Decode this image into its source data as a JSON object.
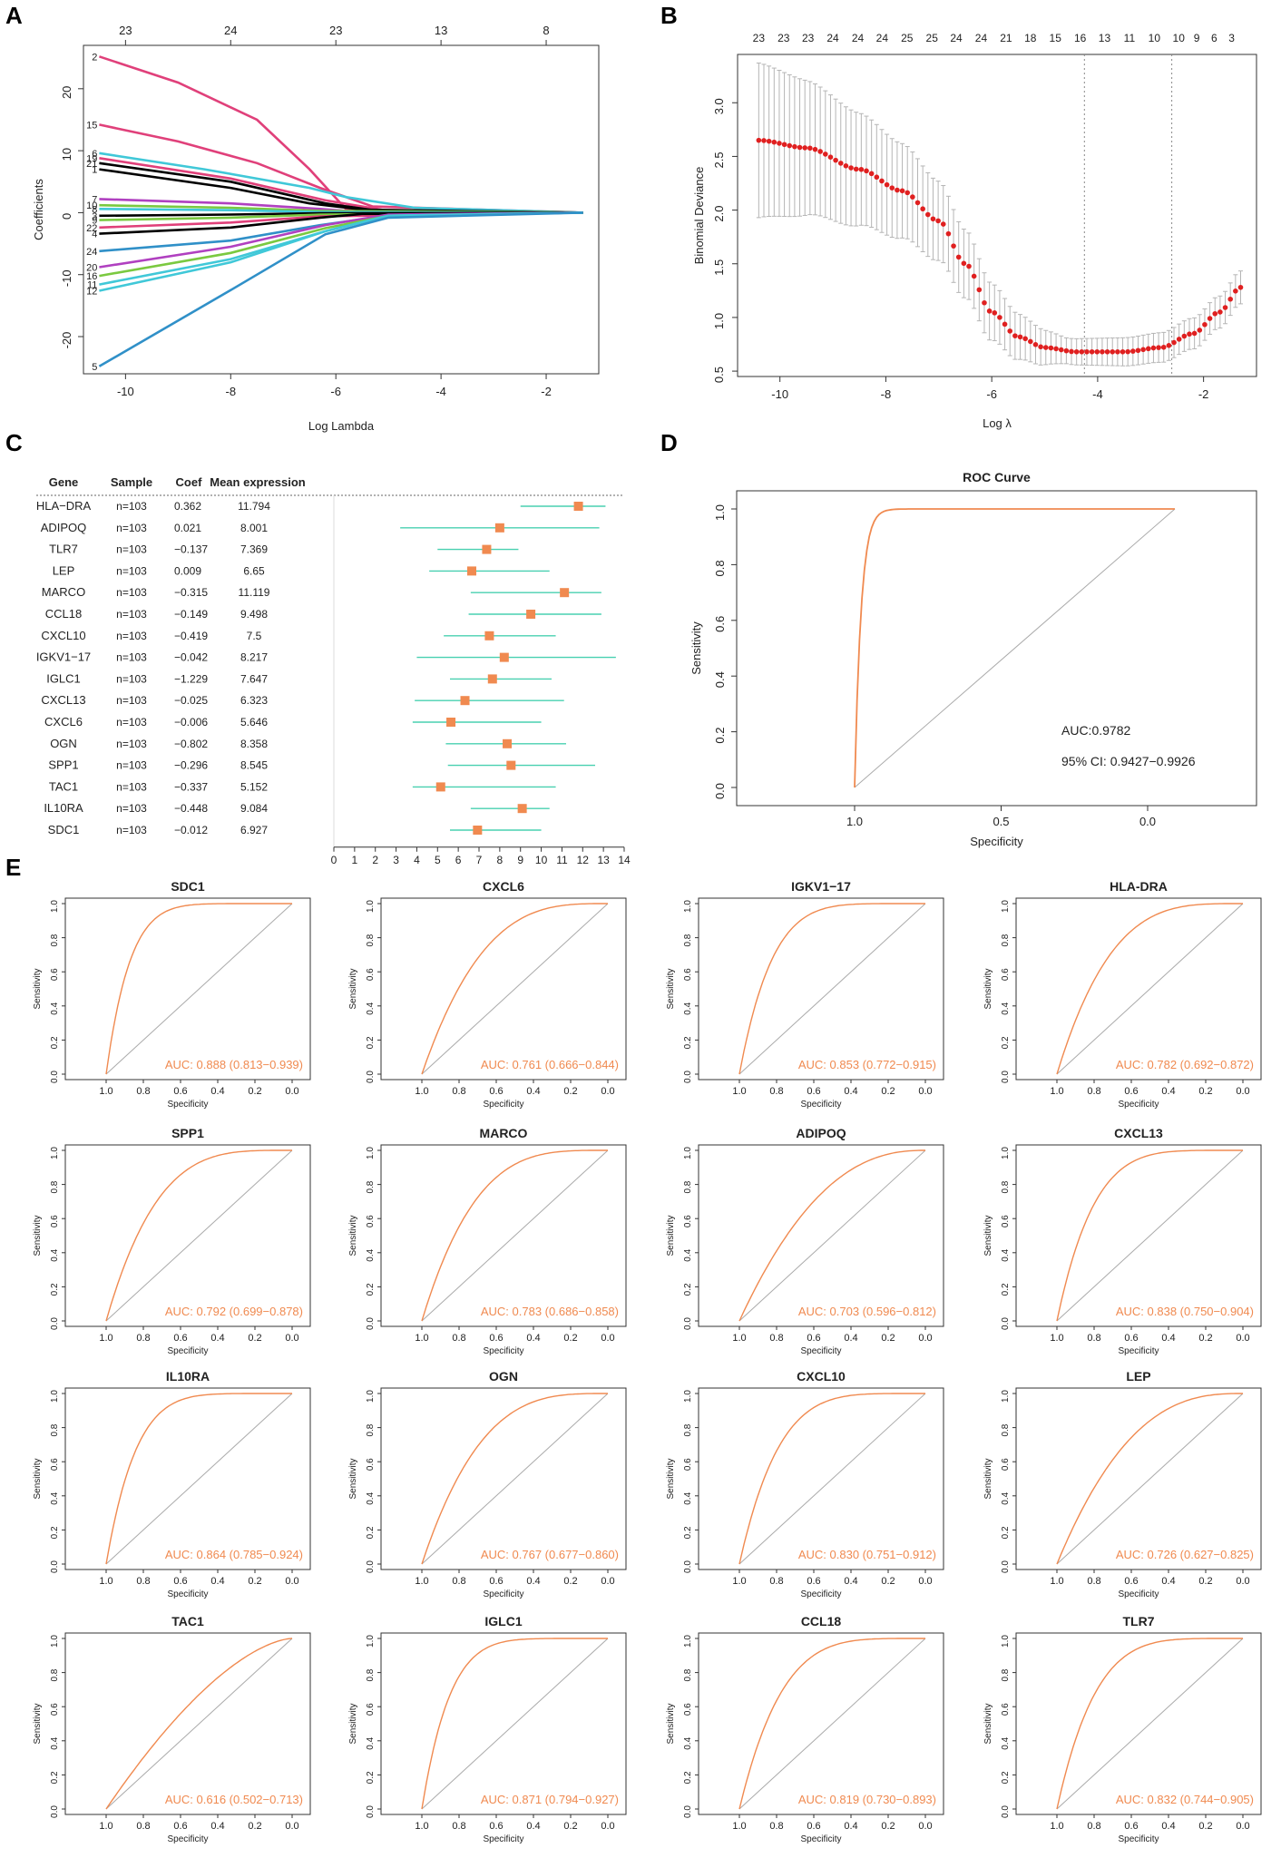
{
  "panels": {
    "a": "A",
    "b": "B",
    "c": "C",
    "d": "D",
    "e": "E"
  },
  "colors": {
    "roc": "#f08a50",
    "ci": "#48d0b0",
    "point": "#f08a50",
    "cv": "#e02020",
    "grey": "#999999"
  },
  "chart_data": [
    {
      "id": "A",
      "type": "line",
      "title": "",
      "xlabel": "Log Lambda",
      "ylabel": "Coefficients",
      "xlim": [
        -10.8,
        -1.0
      ],
      "ylim": [
        -26,
        27
      ],
      "xticks": [
        -10,
        -8,
        -6,
        -4,
        -2
      ],
      "yticks": [
        -20,
        -10,
        0,
        10,
        20
      ],
      "top_axis": {
        "positions": [
          -10,
          -8,
          -6,
          -4,
          -2
        ],
        "labels": [
          "23",
          "24",
          "23",
          "13",
          "8"
        ]
      },
      "series": [
        {
          "name": "2",
          "color": "#e0407a",
          "points": [
            [
              -10.5,
              25.2
            ],
            [
              -9,
              21
            ],
            [
              -7.5,
              15
            ],
            [
              -6.5,
              7
            ],
            [
              -5.8,
              0.5
            ],
            [
              -1.3,
              0
            ]
          ]
        },
        {
          "name": "15",
          "color": "#e0407a",
          "points": [
            [
              -10.5,
              14.2
            ],
            [
              -9,
              11.5
            ],
            [
              -7.5,
              8
            ],
            [
              -6.3,
              4
            ],
            [
              -5.3,
              1
            ],
            [
              -1.3,
              0
            ]
          ]
        },
        {
          "name": "6",
          "color": "#40c8d8",
          "points": [
            [
              -10.5,
              9.6
            ],
            [
              -8.5,
              7
            ],
            [
              -6.5,
              4
            ],
            [
              -5.8,
              2.5
            ],
            [
              -4.5,
              0.8
            ],
            [
              -1.3,
              0
            ]
          ]
        },
        {
          "name": "19",
          "color": "#e0407a",
          "points": [
            [
              -10.5,
              8.8
            ],
            [
              -8,
              5.5
            ],
            [
              -6.2,
              2
            ],
            [
              -5.0,
              0.3
            ],
            [
              -1.3,
              0
            ]
          ]
        },
        {
          "name": "21",
          "color": "#000000",
          "points": [
            [
              -10.5,
              8.0
            ],
            [
              -8,
              5
            ],
            [
              -6.2,
              1.5
            ],
            [
              -5.2,
              0.3
            ],
            [
              -1.3,
              0
            ]
          ]
        },
        {
          "name": "1",
          "color": "#000000",
          "points": [
            [
              -10.5,
              7.0
            ],
            [
              -8,
              4
            ],
            [
              -6.5,
              1.5
            ],
            [
              -5.5,
              0.5
            ],
            [
              -1.3,
              0
            ]
          ]
        },
        {
          "name": "7",
          "color": "#b040c0",
          "points": [
            [
              -10.5,
              2.2
            ],
            [
              -8,
              1.5
            ],
            [
              -6.3,
              0.6
            ],
            [
              -5.5,
              0.1
            ],
            [
              -1.3,
              0
            ]
          ]
        },
        {
          "name": "10",
          "color": "#7ac940",
          "points": [
            [
              -10.5,
              1.2
            ],
            [
              -8,
              0.8
            ],
            [
              -6.3,
              0.3
            ],
            [
              -1.3,
              0
            ]
          ]
        },
        {
          "name": "8",
          "color": "#40c8d8",
          "points": [
            [
              -10.5,
              0.6
            ],
            [
              -8,
              0.4
            ],
            [
              -6.3,
              0.1
            ],
            [
              -1.3,
              0
            ]
          ]
        },
        {
          "name": "3",
          "color": "#000000",
          "points": [
            [
              -10.5,
              -0.5
            ],
            [
              -8,
              -0.3
            ],
            [
              -6.3,
              -0.1
            ],
            [
              -1.3,
              0
            ]
          ]
        },
        {
          "name": "9",
          "color": "#7ac940",
          "points": [
            [
              -10.5,
              -1.2
            ],
            [
              -8,
              -0.8
            ],
            [
              -6.3,
              -0.3
            ],
            [
              -1.3,
              0
            ]
          ]
        },
        {
          "name": "22",
          "color": "#e0407a",
          "points": [
            [
              -10.5,
              -2.4
            ],
            [
              -8,
              -1.6
            ],
            [
              -6.3,
              -0.6
            ],
            [
              -1.3,
              0
            ]
          ]
        },
        {
          "name": "4",
          "color": "#000000",
          "points": [
            [
              -10.5,
              -3.4
            ],
            [
              -8,
              -2.4
            ],
            [
              -6.3,
              -0.8
            ],
            [
              -5.5,
              -0.2
            ],
            [
              -1.3,
              0
            ]
          ]
        },
        {
          "name": "24",
          "color": "#3090c8",
          "points": [
            [
              -10.5,
              -6.2
            ],
            [
              -8,
              -4.5
            ],
            [
              -6.3,
              -2
            ],
            [
              -5.0,
              -0.5
            ],
            [
              -1.3,
              0
            ]
          ]
        },
        {
          "name": "20",
          "color": "#b040c0",
          "points": [
            [
              -10.5,
              -8.8
            ],
            [
              -8,
              -5.5
            ],
            [
              -6.2,
              -2
            ],
            [
              -5.0,
              -0.3
            ],
            [
              -1.3,
              0
            ]
          ]
        },
        {
          "name": "16",
          "color": "#7ac940",
          "points": [
            [
              -10.5,
              -10.2
            ],
            [
              -8,
              -6.5
            ],
            [
              -6.2,
              -2.5
            ],
            [
              -5.0,
              -0.5
            ],
            [
              -1.3,
              0
            ]
          ]
        },
        {
          "name": "11",
          "color": "#40c8d8",
          "points": [
            [
              -10.5,
              -11.6
            ],
            [
              -8,
              -7.5
            ],
            [
              -6.2,
              -3
            ],
            [
              -5.0,
              -0.5
            ],
            [
              -1.3,
              0
            ]
          ]
        },
        {
          "name": "12",
          "color": "#40c8d8",
          "points": [
            [
              -10.5,
              -12.6
            ],
            [
              -8,
              -8
            ],
            [
              -6.2,
              -3
            ],
            [
              -5.0,
              -0.5
            ],
            [
              -1.3,
              0
            ]
          ]
        },
        {
          "name": "5",
          "color": "#3090c8",
          "points": [
            [
              -10.5,
              -24.8
            ],
            [
              -8,
              -12.5
            ],
            [
              -6.2,
              -3.5
            ],
            [
              -5.0,
              -0.8
            ],
            [
              -1.3,
              0
            ]
          ]
        }
      ]
    },
    {
      "id": "B",
      "type": "scatter",
      "title": "",
      "xlabel": "Log λ",
      "ylabel": "Binomial Deviance",
      "xlim": [
        -10.8,
        -1.0
      ],
      "ylim": [
        0.45,
        3.45
      ],
      "xticks": [
        -10,
        -8,
        -6,
        -4,
        -2
      ],
      "yticks": [
        0.5,
        1.0,
        1.5,
        2.0,
        2.5,
        3.0
      ],
      "top_axis": {
        "positions": [
          -10.4,
          -9.93,
          -9.47,
          -9.0,
          -8.53,
          -8.07,
          -7.6,
          -7.13,
          -6.67,
          -6.2,
          -5.73,
          -5.27,
          -4.8,
          -4.33,
          -3.87,
          -3.4,
          -2.93,
          -2.47,
          -2.13,
          -1.8,
          -1.47
        ],
        "labels": [
          "23",
          "23",
          "23",
          "24",
          "24",
          "24",
          "25",
          "25",
          "24",
          "24",
          "21",
          "18",
          "15",
          "16",
          "13",
          "11",
          "10",
          "10",
          "9",
          "6",
          "3"
        ]
      },
      "vlines": [
        -4.25,
        -2.6
      ],
      "curve_knots": [
        [
          -10.4,
          2.65
        ],
        [
          -9.5,
          2.58
        ],
        [
          -8.5,
          2.38
        ],
        [
          -7.7,
          2.18
        ],
        [
          -7.0,
          1.9
        ],
        [
          -6.5,
          1.5
        ],
        [
          -6.0,
          1.05
        ],
        [
          -5.5,
          0.82
        ],
        [
          -5.0,
          0.72
        ],
        [
          -4.4,
          0.68
        ],
        [
          -3.5,
          0.68
        ],
        [
          -2.8,
          0.72
        ],
        [
          -2.2,
          0.85
        ],
        [
          -1.7,
          1.05
        ],
        [
          -1.3,
          1.28
        ]
      ],
      "n_points": 95
    },
    {
      "id": "C",
      "type": "forest",
      "columns": [
        "Gene",
        "Sample",
        "Coef",
        "Mean expression"
      ],
      "xlim": [
        0,
        14
      ],
      "xticks": [
        "0",
        "1",
        "2",
        "3",
        "4",
        "5",
        "6",
        "7",
        "8",
        "9",
        "10",
        "11",
        "12",
        "13",
        "14"
      ],
      "rows": [
        {
          "gene": "HLA−DRA",
          "sample": "n=103",
          "coef": "0.362",
          "mean": "11.794",
          "value": 11.794,
          "lo": 9.0,
          "hi": 13.1
        },
        {
          "gene": "ADIPOQ",
          "sample": "n=103",
          "coef": "0.021",
          "mean": "8.001",
          "value": 8.001,
          "lo": 3.2,
          "hi": 12.8
        },
        {
          "gene": "TLR7",
          "sample": "n=103",
          "coef": "−0.137",
          "mean": "7.369",
          "value": 7.369,
          "lo": 5.0,
          "hi": 8.9
        },
        {
          "gene": "LEP",
          "sample": "n=103",
          "coef": "0.009",
          "mean": "6.65",
          "value": 6.65,
          "lo": 4.6,
          "hi": 10.4
        },
        {
          "gene": "MARCO",
          "sample": "n=103",
          "coef": "−0.315",
          "mean": "11.119",
          "value": 11.119,
          "lo": 6.6,
          "hi": 12.9
        },
        {
          "gene": "CCL18",
          "sample": "n=103",
          "coef": "−0.149",
          "mean": "9.498",
          "value": 9.498,
          "lo": 6.5,
          "hi": 12.9
        },
        {
          "gene": "CXCL10",
          "sample": "n=103",
          "coef": "−0.419",
          "mean": "7.5",
          "value": 7.5,
          "lo": 5.3,
          "hi": 10.7
        },
        {
          "gene": "IGKV1−17",
          "sample": "n=103",
          "coef": "−0.042",
          "mean": "8.217",
          "value": 8.217,
          "lo": 4.0,
          "hi": 13.6
        },
        {
          "gene": "IGLC1",
          "sample": "n=103",
          "coef": "−1.229",
          "mean": "7.647",
          "value": 7.647,
          "lo": 5.6,
          "hi": 10.5
        },
        {
          "gene": "CXCL13",
          "sample": "n=103",
          "coef": "−0.025",
          "mean": "6.323",
          "value": 6.323,
          "lo": 3.9,
          "hi": 11.1
        },
        {
          "gene": "CXCL6",
          "sample": "n=103",
          "coef": "−0.006",
          "mean": "5.646",
          "value": 5.646,
          "lo": 3.8,
          "hi": 10.0
        },
        {
          "gene": "OGN",
          "sample": "n=103",
          "coef": "−0.802",
          "mean": "8.358",
          "value": 8.358,
          "lo": 5.4,
          "hi": 11.2
        },
        {
          "gene": "SPP1",
          "sample": "n=103",
          "coef": "−0.296",
          "mean": "8.545",
          "value": 8.545,
          "lo": 5.5,
          "hi": 12.6
        },
        {
          "gene": "TAC1",
          "sample": "n=103",
          "coef": "−0.337",
          "mean": "5.152",
          "value": 5.152,
          "lo": 3.8,
          "hi": 10.7
        },
        {
          "gene": "IL10RA",
          "sample": "n=103",
          "coef": "−0.448",
          "mean": "9.084",
          "value": 9.084,
          "lo": 6.6,
          "hi": 10.4
        },
        {
          "gene": "SDC1",
          "sample": "n=103",
          "coef": "−0.012",
          "mean": "6.927",
          "value": 6.927,
          "lo": 5.6,
          "hi": 10.0
        }
      ]
    },
    {
      "id": "D",
      "type": "line",
      "title": "ROC Curve",
      "xlabel": "Specificity",
      "ylabel": "Sensitivity",
      "xticks": [
        "1.0",
        "0.5",
        "0.0"
      ],
      "yticks": [
        "0.0",
        "0.2",
        "0.4",
        "0.6",
        "0.8",
        "1.0"
      ],
      "auc_label": "AUC:0.9782",
      "ci_label": "95% CI: 0.9427−0.9926",
      "auc": 0.9782
    },
    {
      "id": "E",
      "type": "line",
      "xlabel": "Specificity",
      "ylabel": "Sensitivity",
      "xticks": [
        "1.0",
        "0.8",
        "0.6",
        "0.4",
        "0.2",
        "0.0"
      ],
      "yticks": [
        "0.0",
        "0.2",
        "0.4",
        "0.6",
        "0.8",
        "1.0"
      ],
      "plots": [
        {
          "gene": "SDC1",
          "auc": 0.888,
          "label": "AUC: 0.888 (0.813−0.939)"
        },
        {
          "gene": "CXCL6",
          "auc": 0.761,
          "label": "AUC: 0.761 (0.666−0.844)"
        },
        {
          "gene": "IGKV1−17",
          "auc": 0.853,
          "label": "AUC: 0.853 (0.772−0.915)"
        },
        {
          "gene": "HLA-DRA",
          "auc": 0.782,
          "label": "AUC: 0.782 (0.692−0.872)"
        },
        {
          "gene": "SPP1",
          "auc": 0.792,
          "label": "AUC: 0.792 (0.699−0.878)"
        },
        {
          "gene": "MARCO",
          "auc": 0.783,
          "label": "AUC: 0.783 (0.686−0.858)"
        },
        {
          "gene": "ADIPOQ",
          "auc": 0.703,
          "label": "AUC: 0.703 (0.596−0.812)"
        },
        {
          "gene": "CXCL13",
          "auc": 0.838,
          "label": "AUC: 0.838 (0.750−0.904)"
        },
        {
          "gene": "IL10RA",
          "auc": 0.864,
          "label": "AUC: 0.864 (0.785−0.924)"
        },
        {
          "gene": "OGN",
          "auc": 0.767,
          "label": "AUC: 0.767 (0.677−0.860)"
        },
        {
          "gene": "CXCL10",
          "auc": 0.83,
          "label": "AUC: 0.830 (0.751−0.912)"
        },
        {
          "gene": "LEP",
          "auc": 0.726,
          "label": "AUC: 0.726 (0.627−0.825)"
        },
        {
          "gene": "TAC1",
          "auc": 0.616,
          "label": "AUC: 0.616 (0.502−0.713)"
        },
        {
          "gene": "IGLC1",
          "auc": 0.871,
          "label": "AUC: 0.871 (0.794−0.927)"
        },
        {
          "gene": "CCL18",
          "auc": 0.819,
          "label": "AUC: 0.819 (0.730−0.893)"
        },
        {
          "gene": "TLR7",
          "auc": 0.832,
          "label": "AUC: 0.832 (0.744−0.905)"
        }
      ]
    }
  ]
}
